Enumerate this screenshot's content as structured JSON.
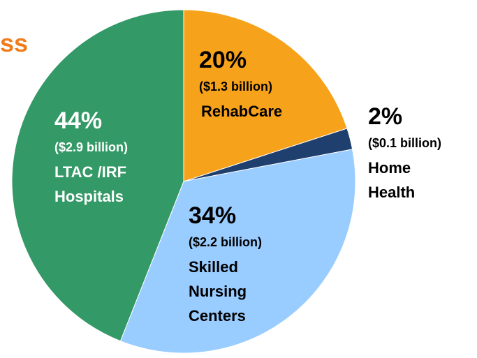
{
  "chart_data": {
    "type": "pie",
    "title": "ss",
    "categories": [
      [
        "RehabCare"
      ],
      [
        "Home",
        "Health"
      ],
      [
        "Skilled",
        "Nursing",
        "Centers"
      ],
      [
        "LTAC /IRF",
        "Hospitals"
      ]
    ],
    "values": [
      20,
      2,
      34,
      44
    ],
    "value_labels": [
      "20%",
      "2%",
      "34%",
      "44%"
    ],
    "amount_labels": [
      "($1.3 billion)",
      "($0.1 billion)",
      "($2.2 billion)",
      "($2.9 billion)"
    ],
    "colors": [
      "#f7a21b",
      "#1f3f6e",
      "#99ccff",
      "#339966"
    ]
  }
}
